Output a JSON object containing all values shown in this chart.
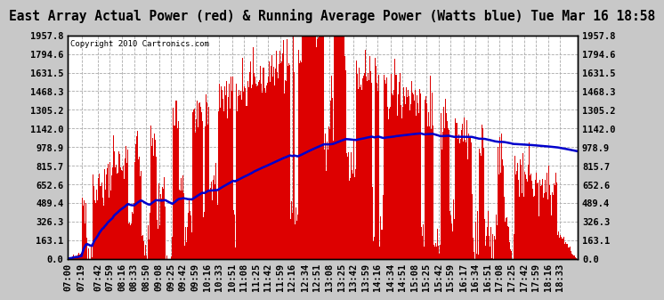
{
  "title": "East Array Actual Power (red) & Running Average Power (Watts blue) Tue Mar 16 18:58",
  "copyright": "Copyright 2010 Cartronics.com",
  "outer_bg": "#c8c8c8",
  "plot_bg_color": "#ffffff",
  "ylim": [
    0,
    1957.8
  ],
  "yticks": [
    0.0,
    163.1,
    326.3,
    489.4,
    652.6,
    815.7,
    978.9,
    1142.0,
    1305.2,
    1468.3,
    1631.5,
    1794.6,
    1957.8
  ],
  "xtick_labels": [
    "07:00",
    "07:19",
    "07:42",
    "07:59",
    "08:16",
    "08:33",
    "08:50",
    "09:08",
    "09:25",
    "09:42",
    "09:59",
    "10:16",
    "10:33",
    "10:51",
    "11:08",
    "11:25",
    "11:42",
    "11:59",
    "12:16",
    "12:34",
    "12:51",
    "13:08",
    "13:25",
    "13:42",
    "13:59",
    "14:16",
    "14:34",
    "14:51",
    "15:08",
    "15:25",
    "15:42",
    "15:59",
    "16:17",
    "16:34",
    "16:51",
    "17:08",
    "17:25",
    "17:42",
    "17:59",
    "18:16",
    "18:33"
  ],
  "bar_color": "#dd0000",
  "line_color": "#0000cc",
  "title_fontsize": 10.5,
  "tick_fontsize": 7.5,
  "copyright_fontsize": 6.5
}
